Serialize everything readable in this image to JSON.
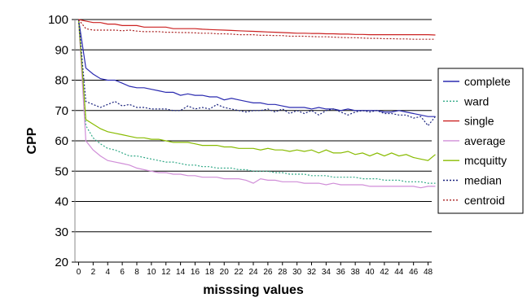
{
  "chart_data": {
    "type": "line",
    "xlabel": "misssing values",
    "ylabel": "CPP",
    "xlim": [
      0,
      49
    ],
    "ylim": [
      20,
      100
    ],
    "x_ticks": [
      0,
      2,
      4,
      6,
      8,
      10,
      12,
      14,
      16,
      18,
      20,
      22,
      24,
      26,
      28,
      30,
      32,
      34,
      36,
      38,
      40,
      42,
      44,
      46,
      48
    ],
    "y_ticks": [
      20,
      30,
      40,
      50,
      60,
      70,
      80,
      90,
      100
    ],
    "grid": "horizontal",
    "legend_position": "right",
    "x": [
      0,
      1,
      2,
      3,
      4,
      5,
      6,
      7,
      8,
      9,
      10,
      11,
      12,
      13,
      14,
      15,
      16,
      17,
      18,
      19,
      20,
      21,
      22,
      23,
      24,
      25,
      26,
      27,
      28,
      29,
      30,
      31,
      32,
      33,
      34,
      35,
      36,
      37,
      38,
      39,
      40,
      41,
      42,
      43,
      44,
      45,
      46,
      47,
      48,
      49
    ],
    "series": [
      {
        "name": "complete",
        "color": "#2b2bb0",
        "dash": "solid",
        "values": [
          100,
          84,
          82,
          80.5,
          80,
          80,
          79,
          78,
          77.5,
          77.5,
          77,
          76.5,
          76,
          76,
          75,
          75.5,
          75,
          75,
          74.5,
          74.5,
          73.5,
          74,
          73.5,
          73,
          72.5,
          72.5,
          72,
          72,
          71.5,
          71,
          71,
          71,
          70.5,
          71,
          70.5,
          70.5,
          70,
          70.5,
          70,
          70,
          70,
          70,
          69.5,
          69.5,
          70,
          69.5,
          69,
          68.5,
          68,
          68
        ]
      },
      {
        "name": "ward",
        "color": "#33aa88",
        "dash": "dot",
        "values": [
          100,
          65,
          61,
          59,
          57.5,
          57,
          56,
          55,
          55,
          54.5,
          54,
          53.5,
          53,
          53,
          52.5,
          52,
          52,
          51.5,
          51.5,
          51,
          51,
          51,
          50.5,
          50.5,
          50,
          50,
          50,
          49.5,
          49.5,
          49,
          49,
          49,
          48.5,
          48.5,
          48.5,
          48,
          48,
          48,
          48,
          47.5,
          47.5,
          47.5,
          47,
          47,
          47,
          46.5,
          46.5,
          46.5,
          46,
          46
        ]
      },
      {
        "name": "single",
        "color": "#cc2222",
        "dash": "solid",
        "values": [
          100,
          99.5,
          99,
          99,
          98.5,
          98.5,
          98,
          98,
          98,
          97.5,
          97.5,
          97.5,
          97.5,
          97,
          97,
          97,
          97,
          96.8,
          96.7,
          96.6,
          96.5,
          96.4,
          96.3,
          96.2,
          96.1,
          96,
          95.9,
          95.8,
          95.7,
          95.6,
          95.5,
          95.5,
          95.4,
          95.4,
          95.3,
          95.3,
          95.2,
          95.2,
          95.1,
          95.1,
          95,
          95,
          95,
          95,
          95,
          95,
          95,
          95,
          95,
          94.9
        ]
      },
      {
        "name": "average",
        "color": "#d08ed8",
        "dash": "solid",
        "values": [
          100,
          60,
          57,
          55,
          53.5,
          53,
          52.5,
          52,
          51,
          50.5,
          50,
          49.5,
          49.5,
          49,
          49,
          48.5,
          48.5,
          48,
          48,
          48,
          47.5,
          47.5,
          47.5,
          47,
          46,
          47.5,
          47,
          47,
          46.5,
          46.5,
          46.5,
          46,
          46,
          46,
          45.5,
          46,
          45.5,
          45.5,
          45.5,
          45.5,
          45,
          45,
          45,
          45,
          45,
          45,
          45,
          44.5,
          45,
          45
        ]
      },
      {
        "name": "mcquitty",
        "color": "#88bb00",
        "dash": "solid",
        "values": [
          100,
          67,
          65.5,
          64,
          63,
          62.5,
          62,
          61.5,
          61,
          61,
          60.5,
          60.5,
          60,
          59.5,
          59.5,
          59.5,
          59,
          58.5,
          58.5,
          58.5,
          58,
          58,
          57.5,
          57.5,
          57.5,
          57,
          57.5,
          57,
          57,
          56.5,
          57,
          56.5,
          57,
          56,
          57,
          56,
          56,
          56.5,
          55.5,
          56,
          55,
          56,
          55,
          56,
          55,
          55.5,
          54.5,
          54,
          53.5,
          55.5
        ]
      },
      {
        "name": "median",
        "color": "#1a237e",
        "dash": "dot",
        "values": [
          100,
          73,
          72,
          71,
          72,
          73,
          71.5,
          72,
          71,
          71,
          70.5,
          70.5,
          70.5,
          70,
          70,
          71.5,
          70.5,
          71,
          70.5,
          72,
          71,
          70.5,
          70,
          69.5,
          70,
          70,
          70.5,
          69.5,
          70.5,
          69,
          70,
          69,
          70,
          68.5,
          70,
          70.5,
          69.5,
          68.5,
          69.5,
          70,
          69.5,
          70,
          69,
          69,
          68.5,
          68.5,
          67.5,
          68,
          65,
          68
        ]
      },
      {
        "name": "centroid",
        "color": "#aa2222",
        "dash": "dot",
        "values": [
          100,
          97,
          96.5,
          96.5,
          96.5,
          96.5,
          96.3,
          96.5,
          96.2,
          96,
          96,
          96,
          95.8,
          95.8,
          95.7,
          95.7,
          95.6,
          95.5,
          95.5,
          95.3,
          95.3,
          95.2,
          95,
          95,
          95,
          94.8,
          94.8,
          94.7,
          94.7,
          94.5,
          94.5,
          94.5,
          94.4,
          94.3,
          94.3,
          94.2,
          94.1,
          94,
          94,
          93.9,
          93.8,
          93.8,
          93.7,
          93.7,
          93.6,
          93.6,
          93.5,
          93.5,
          93.5,
          93.5
        ]
      }
    ]
  }
}
